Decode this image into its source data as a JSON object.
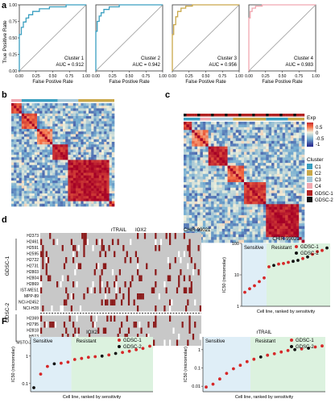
{
  "panel_letters": {
    "a": "a",
    "b": "b",
    "c": "c",
    "d": "d",
    "e": "e",
    "F": "F",
    "G": "G"
  },
  "roc": {
    "ylabel": "True Positive Rate",
    "xlabel": "False Postive Rate",
    "xticks": [
      "0.00",
      "0.25",
      "0.50",
      "0.75",
      "1.00"
    ],
    "yticks": [
      "0.00",
      "0.25",
      "0.50",
      "0.75",
      "1.00"
    ]
  },
  "heatmap_legend": {
    "exp_title": "Exp",
    "exp_ticks": [
      "0.5",
      "0",
      "-0.5",
      "-1"
    ],
    "cluster_title": "Cluster",
    "cluster_items": [
      {
        "label": "C1",
        "color": "#3a9fc0"
      },
      {
        "label": "C2",
        "color": "#c9a84a"
      },
      {
        "label": "C3",
        "color": "#a4c8d8"
      },
      {
        "label": "C4",
        "color": "#f0a8b0"
      }
    ],
    "gdsc_items": [
      {
        "label": "GDSC-1",
        "color": "#b22222"
      },
      {
        "label": "GDSC-2",
        "color": "#111111"
      }
    ]
  },
  "panel_d": {
    "drug_labels": [
      "rTRAIL",
      "IOX2",
      "CHIR-99021"
    ],
    "group1_label": "GDSC-1",
    "group2_label": "GDSC-2",
    "group1_rows": [
      "H2373",
      "H2461",
      "H2591",
      "H2595",
      "H2722",
      "H2731",
      "H2803",
      "H2804",
      "H2869",
      "IST-MES1",
      "MPP-89",
      "NCI-H2452",
      "NCI-H28"
    ],
    "group2_rows": [
      "H2369",
      "H2795",
      "H2818",
      "H513",
      "MSTO-211H"
    ]
  },
  "scatter_common": {
    "xlabel": "Cell line, ranked by sensitivity",
    "ylabel": "IC50 (micromolar)",
    "sensitive_label": "Sensitive",
    "resistant_label": "Resistant",
    "legend": [
      {
        "label": "GDSC-1",
        "color": "#d62728"
      },
      {
        "label": "GDSC-2",
        "color": "#111111"
      }
    ]
  },
  "chart_data": [
    {
      "type": "line",
      "title": "Cluster 1",
      "text": "AUC = 0.912",
      "color": "#3a9fc0",
      "x": [
        0,
        0,
        0.03,
        0.03,
        0.06,
        0.06,
        0.1,
        0.1,
        0.14,
        0.14,
        0.2,
        0.2,
        0.3,
        0.3,
        0.45,
        0.45,
        0.7,
        0.7,
        1.0
      ],
      "y": [
        0,
        0.55,
        0.55,
        0.66,
        0.66,
        0.74,
        0.74,
        0.8,
        0.8,
        0.85,
        0.85,
        0.9,
        0.9,
        0.94,
        0.94,
        0.97,
        0.97,
        1.0,
        1.0
      ],
      "xlabel": "False Postive Rate",
      "ylabel": "True Positive Rate",
      "xlim": [
        0,
        1
      ],
      "ylim": [
        0,
        1
      ]
    },
    {
      "type": "line",
      "title": "Cluster 2",
      "text": "AUC = 0.942",
      "color": "#3a9fc0",
      "x": [
        0,
        0,
        0.02,
        0.02,
        0.05,
        0.05,
        0.08,
        0.08,
        0.12,
        0.12,
        0.2,
        0.2,
        0.35,
        0.35,
        1.0
      ],
      "y": [
        0,
        0.6,
        0.6,
        0.75,
        0.75,
        0.83,
        0.83,
        0.88,
        0.88,
        0.93,
        0.93,
        0.97,
        0.97,
        1.0,
        1.0
      ],
      "xlabel": "False Postive Rate",
      "ylabel": "True Positive Rate",
      "xlim": [
        0,
        1
      ],
      "ylim": [
        0,
        1
      ]
    },
    {
      "type": "line",
      "title": "Cluster 3",
      "text": "AUC = 0.956",
      "color": "#c9a84a",
      "x": [
        0,
        0,
        0.02,
        0.02,
        0.05,
        0.05,
        0.08,
        0.08,
        0.13,
        0.13,
        0.2,
        0.2,
        0.3,
        0.3,
        1.0
      ],
      "y": [
        0,
        0.55,
        0.55,
        0.7,
        0.7,
        0.82,
        0.82,
        0.9,
        0.9,
        0.95,
        0.95,
        0.98,
        0.98,
        1.0,
        1.0
      ],
      "xlabel": "False Postive Rate",
      "ylabel": "True Positive Rate",
      "xlim": [
        0,
        1
      ],
      "ylim": [
        0,
        1
      ]
    },
    {
      "type": "line",
      "title": "Cluster 4",
      "text": "AUC = 0.983",
      "color": "#f0a8b0",
      "x": [
        0,
        0,
        0.02,
        0.02,
        0.05,
        0.05,
        0.1,
        0.1,
        0.2,
        0.2,
        1.0
      ],
      "y": [
        0,
        0.8,
        0.8,
        0.9,
        0.9,
        0.95,
        0.95,
        0.98,
        0.98,
        1.0,
        1.0
      ],
      "xlabel": "False Postive Rate",
      "ylabel": "True Positive Rate",
      "xlim": [
        0,
        1
      ],
      "ylim": [
        0,
        1
      ]
    },
    {
      "type": "heatmap",
      "panel": "b",
      "scale": "Exp",
      "ticks": [
        0.5,
        0,
        -0.5,
        -1
      ],
      "row_clusters": [
        "C1",
        "C2",
        "C3",
        "C4"
      ]
    },
    {
      "type": "heatmap",
      "panel": "c",
      "scale": "Exp",
      "ticks": [
        0.5,
        0,
        -0.5,
        -1
      ],
      "row_clusters": [
        "C1",
        "C2",
        "C3",
        "C4"
      ],
      "groups": [
        "GDSC-1",
        "GDSC-2"
      ]
    },
    {
      "type": "heatmap",
      "panel": "d",
      "categories": [
        "GDSC-1",
        "GDSC-2"
      ]
    },
    {
      "type": "scatter",
      "panel": "e",
      "title": "CHIR-99021",
      "yscale": "log",
      "ylim": [
        1,
        100
      ],
      "yticks": [
        "1",
        "10",
        "100"
      ],
      "sensitive_count": 5,
      "series": [
        {
          "name": "GDSC-1",
          "x": [
            1,
            2,
            3,
            4,
            5,
            6,
            8,
            9,
            10,
            13,
            15,
            16,
            17
          ],
          "y": [
            2.8,
            3.6,
            4.5,
            6.1,
            8.0,
            18,
            22,
            23,
            25,
            33,
            45,
            55,
            60
          ]
        },
        {
          "name": "GDSC-2",
          "x": [
            7,
            11,
            12,
            14,
            18
          ],
          "y": [
            20,
            27,
            29,
            37,
            72
          ]
        }
      ],
      "xlabel": "Cell line, ranked by sensitivity",
      "ylabel": "IC50 (micromolar)"
    },
    {
      "type": "scatter",
      "panel": "F",
      "title": "IOX2",
      "yscale": "log",
      "ylim": [
        0.05,
        5
      ],
      "yticks": [
        "0.1",
        "1"
      ],
      "sensitive_count": 6,
      "series": [
        {
          "name": "GDSC-1",
          "x": [
            2,
            3,
            5,
            6,
            7,
            8,
            9,
            10,
            12,
            14,
            15,
            16,
            17,
            18
          ],
          "y": [
            0.22,
            0.42,
            0.55,
            0.6,
            0.75,
            0.82,
            0.9,
            0.95,
            1.1,
            1.35,
            1.5,
            1.7,
            1.9,
            2.3
          ]
        },
        {
          "name": "GDSC-2",
          "x": [
            1,
            4,
            11,
            13
          ],
          "y": [
            0.07,
            0.52,
            1.0,
            1.25
          ]
        }
      ],
      "xlabel": "Cell line, ranked by sensitivity",
      "ylabel": "IC50 (micromolar)"
    },
    {
      "type": "scatter",
      "panel": "G",
      "title": "rTRAIL",
      "yscale": "log",
      "ylim": [
        0.005,
        5
      ],
      "yticks": [
        "0.01",
        "0.1",
        "1"
      ],
      "sensitive_count": 7,
      "series": [
        {
          "name": "GDSC-1",
          "x": [
            1,
            2,
            3,
            4,
            5,
            6,
            7,
            8,
            10,
            11,
            12,
            13,
            15,
            17,
            18
          ],
          "y": [
            0.009,
            0.013,
            0.025,
            0.05,
            0.09,
            0.14,
            0.22,
            0.3,
            0.5,
            0.6,
            0.75,
            0.9,
            1.1,
            1.4,
            1.6
          ]
        },
        {
          "name": "GDSC-2",
          "x": [
            9,
            14,
            16
          ],
          "y": [
            0.4,
            1.0,
            1.2
          ]
        }
      ],
      "xlabel": "Cell line, ranked by sensitivity",
      "ylabel": "IC50 (micromolar)"
    }
  ]
}
